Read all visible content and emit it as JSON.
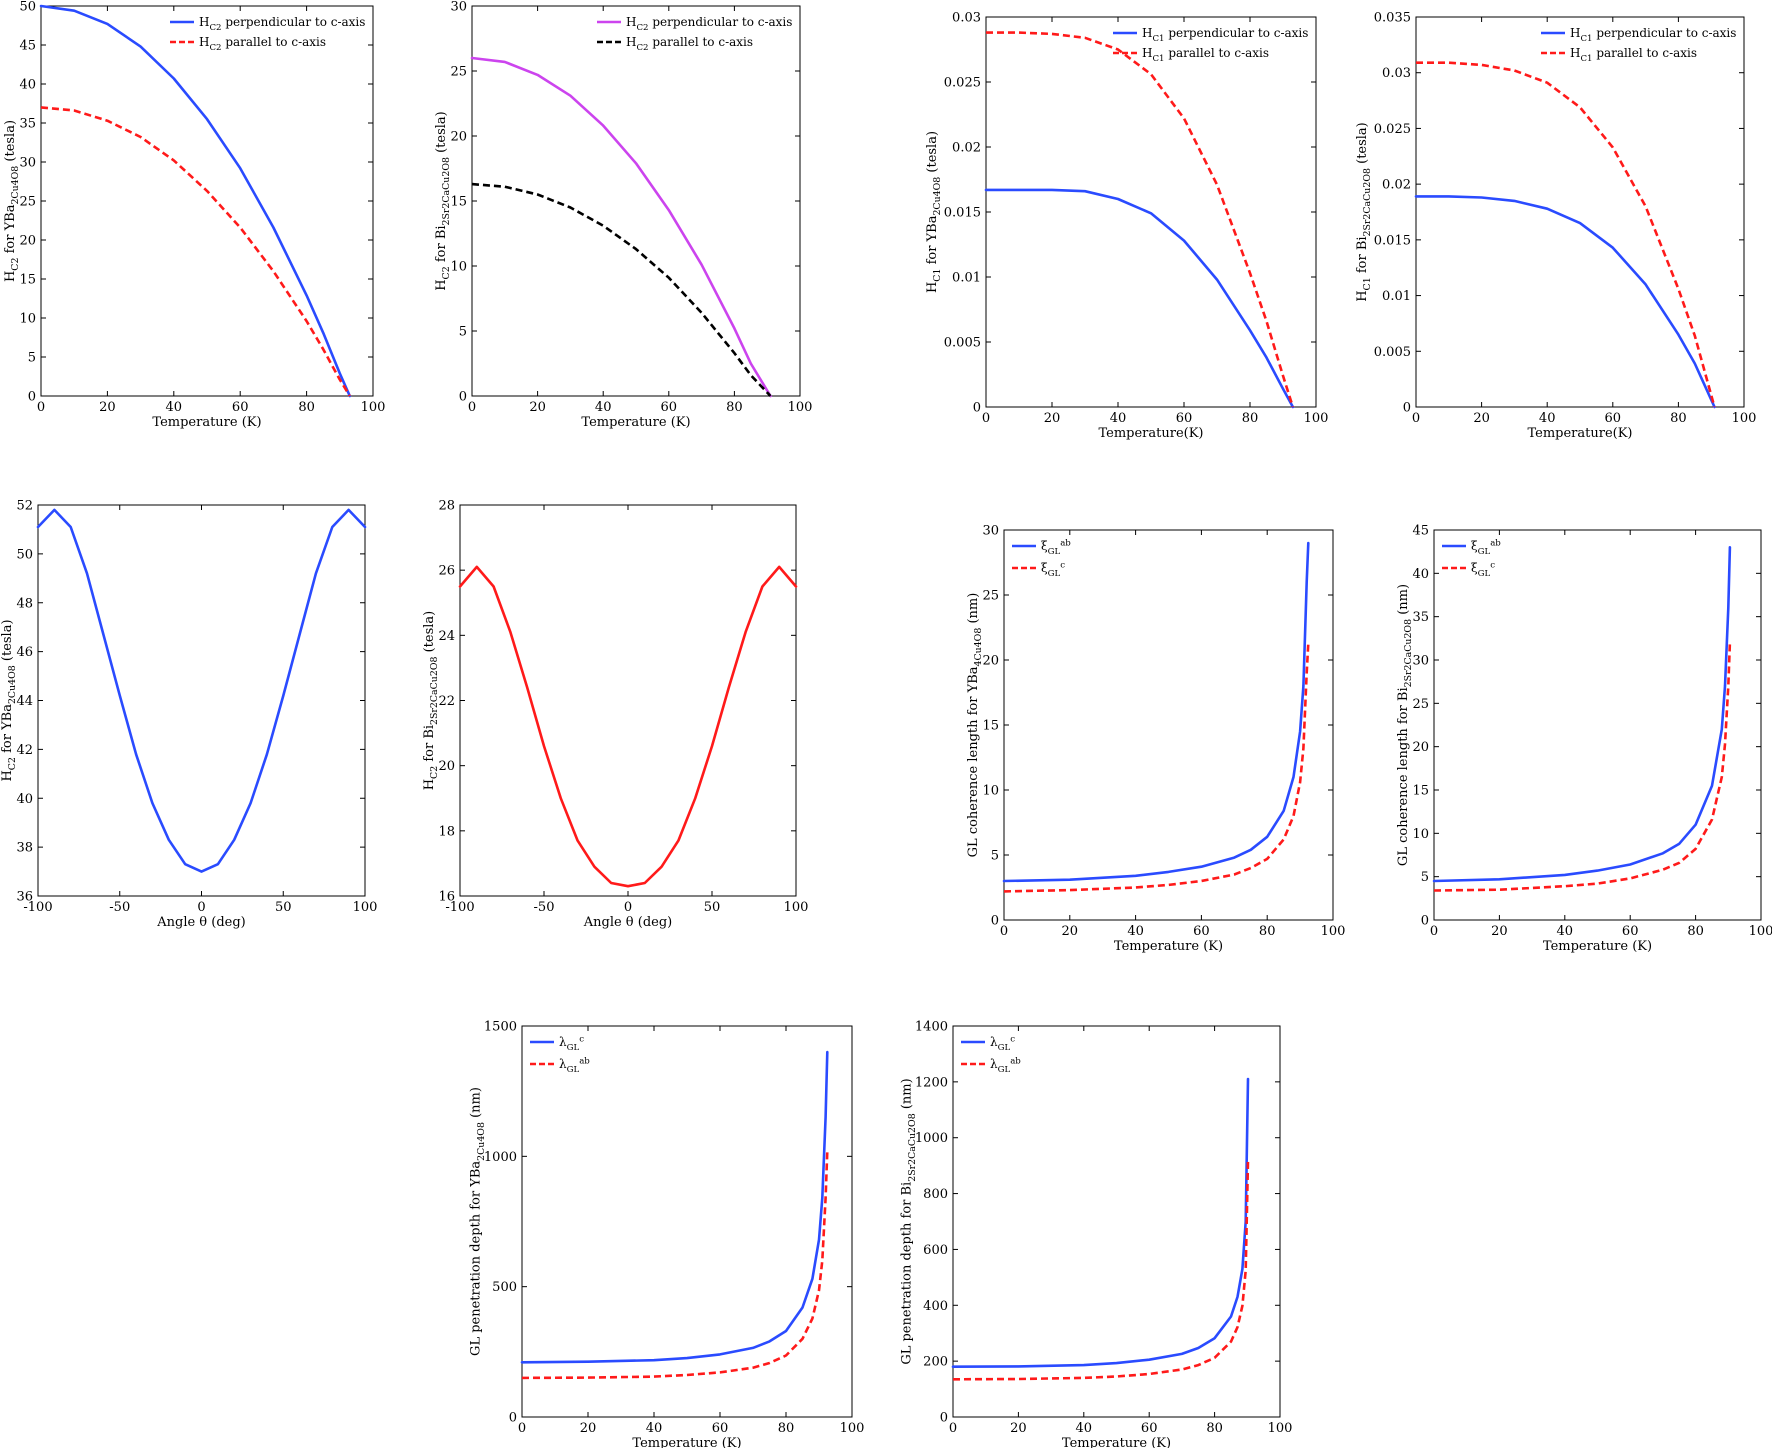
{
  "chart_data": [
    {
      "type": "line",
      "xlabel": "Temperature (K)",
      "ylabel": "H_C2 for YBa_2Cu_4O_8 (tesla)",
      "xlim": [
        0,
        100
      ],
      "ylim": [
        0,
        50
      ],
      "xticks": [
        0,
        20,
        40,
        60,
        80,
        100
      ],
      "yticks": [
        0,
        5,
        10,
        15,
        20,
        25,
        30,
        35,
        40,
        45,
        50
      ],
      "legend": "top-right",
      "series": [
        {
          "name": "H_C2 perpendicular to c-axis",
          "color": "#2a4bff",
          "dash": "solid",
          "x": [
            0,
            10,
            20,
            30,
            40,
            50,
            60,
            70,
            80,
            85,
            90,
            93
          ],
          "y": [
            50,
            49.4,
            47.7,
            44.8,
            40.7,
            35.5,
            29.2,
            21.6,
            12.9,
            8.1,
            2.9,
            0
          ]
        },
        {
          "name": "H_C2 parallel to c-axis",
          "color": "#ff1a1a",
          "dash": "dashed",
          "x": [
            0,
            10,
            20,
            30,
            40,
            50,
            60,
            70,
            80,
            85,
            90,
            93
          ],
          "y": [
            37,
            36.6,
            35.3,
            33.2,
            30.2,
            26.3,
            21.6,
            16,
            9.6,
            6,
            2.1,
            0
          ]
        }
      ]
    },
    {
      "type": "line",
      "xlabel": "Temperature (K)",
      "ylabel": "H_C2 for Bi_2Sr_2CaCu_2O_8 (tesla)",
      "xlim": [
        0,
        100
      ],
      "ylim": [
        0,
        30
      ],
      "xticks": [
        0,
        20,
        40,
        60,
        80,
        100
      ],
      "yticks": [
        0,
        5,
        10,
        15,
        20,
        25,
        30
      ],
      "legend": "top-right",
      "series": [
        {
          "name": "H_C2 perpendicular to c-axis",
          "color": "#cc44ee",
          "dash": "solid",
          "x": [
            0,
            10,
            20,
            30,
            40,
            50,
            60,
            70,
            80,
            85,
            91
          ],
          "y": [
            26,
            25.7,
            24.7,
            23.1,
            20.8,
            17.9,
            14.3,
            10.1,
            5.2,
            2.5,
            0
          ]
        },
        {
          "name": "H_C2 parallel to c-axis",
          "color": "#000000",
          "dash": "dashed",
          "x": [
            0,
            10,
            20,
            30,
            40,
            50,
            60,
            70,
            80,
            85,
            91
          ],
          "y": [
            16.3,
            16.1,
            15.5,
            14.5,
            13.1,
            11.3,
            9.1,
            6.4,
            3.3,
            1.6,
            0
          ]
        }
      ]
    },
    {
      "type": "line",
      "xlabel": "Temperature(K)",
      "ylabel": "H_C1 for YBa_2Cu_4O_8 (tesla)",
      "xlim": [
        0,
        100
      ],
      "ylim": [
        0,
        0.03
      ],
      "xticks": [
        0,
        20,
        40,
        60,
        80,
        100
      ],
      "yticks": [
        0,
        0.005,
        0.01,
        0.015,
        0.02,
        0.025,
        0.03
      ],
      "legend": "top-right",
      "series": [
        {
          "name": "H_C1 perpendicular to c-axis",
          "color": "#2a4bff",
          "dash": "solid",
          "x": [
            0,
            10,
            20,
            30,
            40,
            50,
            60,
            70,
            80,
            85,
            90,
            93
          ],
          "y": [
            0.0167,
            0.0167,
            0.0167,
            0.0166,
            0.016,
            0.0149,
            0.0128,
            0.0098,
            0.0059,
            0.0038,
            0.0014,
            0
          ]
        },
        {
          "name": "H_C1 parallel to c-axis",
          "color": "#ff1a1a",
          "dash": "dashed",
          "x": [
            0,
            10,
            20,
            30,
            40,
            50,
            60,
            70,
            80,
            85,
            90,
            93
          ],
          "y": [
            0.0288,
            0.0288,
            0.0287,
            0.0284,
            0.0275,
            0.0256,
            0.0222,
            0.0171,
            0.0103,
            0.0066,
            0.0024,
            0
          ]
        }
      ]
    },
    {
      "type": "line",
      "xlabel": "Temperature(K)",
      "ylabel": "H_C1 for Bi_2Sr_2CaCu_2O_8 (tesla)",
      "xlim": [
        0,
        100
      ],
      "ylim": [
        0,
        0.035
      ],
      "xticks": [
        0,
        20,
        40,
        60,
        80,
        100
      ],
      "yticks": [
        0,
        0.005,
        0.01,
        0.015,
        0.02,
        0.025,
        0.03,
        0.035
      ],
      "legend": "top-right",
      "series": [
        {
          "name": "H_C1 perpendicular to c-axis",
          "color": "#2a4bff",
          "dash": "solid",
          "x": [
            0,
            10,
            20,
            30,
            40,
            50,
            60,
            70,
            80,
            85,
            91
          ],
          "y": [
            0.0189,
            0.0189,
            0.0188,
            0.0185,
            0.0178,
            0.0165,
            0.0143,
            0.011,
            0.0065,
            0.0039,
            0
          ]
        },
        {
          "name": "H_C1 parallel to c-axis",
          "color": "#ff1a1a",
          "dash": "dashed",
          "x": [
            0,
            10,
            20,
            30,
            40,
            50,
            60,
            70,
            80,
            85,
            91
          ],
          "y": [
            0.0309,
            0.0309,
            0.0307,
            0.0302,
            0.0291,
            0.0269,
            0.0233,
            0.018,
            0.0106,
            0.0064,
            0
          ]
        }
      ]
    },
    {
      "type": "line",
      "xlabel": "Angle θ (deg)",
      "ylabel": "H_C2 for YBa_2Cu_4O_8 (tesla)",
      "xlim": [
        -100,
        100
      ],
      "ylim": [
        36,
        52
      ],
      "xticks": [
        -100,
        -50,
        0,
        50,
        100
      ],
      "yticks": [
        36,
        38,
        40,
        42,
        44,
        46,
        48,
        50,
        52
      ],
      "series": [
        {
          "color": "#2a4bff",
          "dash": "solid",
          "x": [
            -100,
            -90,
            -80,
            -70,
            -60,
            -50,
            -40,
            -30,
            -20,
            -10,
            0,
            10,
            20,
            30,
            40,
            50,
            60,
            70,
            80,
            90,
            100
          ],
          "y": [
            51.1,
            51.8,
            51.1,
            49.2,
            46.7,
            44.2,
            41.8,
            39.8,
            38.3,
            37.3,
            37,
            37.3,
            38.3,
            39.8,
            41.8,
            44.2,
            46.7,
            49.2,
            51.1,
            51.8,
            51.1
          ]
        }
      ]
    },
    {
      "type": "line",
      "xlabel": "Angle θ (deg)",
      "ylabel": "H_C2 for Bi_2Sr_2CaCu_2O_8 (tesla)",
      "xlim": [
        -100,
        100
      ],
      "ylim": [
        16,
        28
      ],
      "xticks": [
        -100,
        -50,
        0,
        50,
        100
      ],
      "yticks": [
        16,
        18,
        20,
        22,
        24,
        26,
        28
      ],
      "series": [
        {
          "color": "#ff1a1a",
          "dash": "solid",
          "x": [
            -100,
            -90,
            -80,
            -70,
            -60,
            -50,
            -40,
            -30,
            -20,
            -10,
            0,
            10,
            20,
            30,
            40,
            50,
            60,
            70,
            80,
            90,
            100
          ],
          "y": [
            25.5,
            26.1,
            25.5,
            24.1,
            22.4,
            20.6,
            19,
            17.7,
            16.9,
            16.4,
            16.3,
            16.4,
            16.9,
            17.7,
            19,
            20.6,
            22.4,
            24.1,
            25.5,
            26.1,
            25.5
          ]
        }
      ]
    },
    {
      "type": "line",
      "xlabel": "Temperature (K)",
      "ylabel": "GL coherence length for YBa_4Cu_4O_8 (nm)",
      "xlim": [
        0,
        100
      ],
      "ylim": [
        0,
        30
      ],
      "xticks": [
        0,
        20,
        40,
        60,
        80,
        100
      ],
      "yticks": [
        0,
        5,
        10,
        15,
        20,
        25,
        30
      ],
      "legend": "top-left",
      "series": [
        {
          "name": "ξ_GL^ab",
          "color": "#2a4bff",
          "dash": "solid",
          "x": [
            0,
            20,
            40,
            50,
            60,
            70,
            75,
            80,
            85,
            88,
            90,
            91,
            92,
            92.5
          ],
          "y": [
            3.0,
            3.1,
            3.4,
            3.7,
            4.1,
            4.8,
            5.4,
            6.4,
            8.4,
            11,
            14.5,
            18,
            26,
            29
          ]
        },
        {
          "name": "ξ_GL^c",
          "color": "#ff1a1a",
          "dash": "dashed",
          "x": [
            0,
            20,
            40,
            50,
            60,
            70,
            75,
            80,
            85,
            88,
            90,
            91,
            92,
            92.5
          ],
          "y": [
            2.2,
            2.3,
            2.5,
            2.7,
            3.0,
            3.5,
            4.0,
            4.7,
            6.2,
            8.0,
            10.6,
            13.2,
            19,
            21.3
          ]
        }
      ]
    },
    {
      "type": "line",
      "xlabel": "Temperature (K)",
      "ylabel": "GL coherence length for Bi_2Sr_2CaCu_2O_8 (nm)",
      "xlim": [
        0,
        100
      ],
      "ylim": [
        0,
        45
      ],
      "xticks": [
        0,
        20,
        40,
        60,
        80,
        100
      ],
      "yticks": [
        0,
        5,
        10,
        15,
        20,
        25,
        30,
        35,
        40,
        45
      ],
      "legend": "top-left",
      "series": [
        {
          "name": "ξ_GL^ab",
          "color": "#2a4bff",
          "dash": "solid",
          "x": [
            0,
            20,
            40,
            50,
            60,
            70,
            75,
            80,
            85,
            88,
            89,
            90,
            90.5
          ],
          "y": [
            4.5,
            4.7,
            5.2,
            5.7,
            6.4,
            7.7,
            8.8,
            11,
            15.5,
            22,
            27,
            36,
            43
          ]
        },
        {
          "name": "ξ_GL^c",
          "color": "#ff1a1a",
          "dash": "dashed",
          "x": [
            0,
            20,
            40,
            50,
            60,
            70,
            75,
            80,
            85,
            88,
            89,
            90,
            90.5
          ],
          "y": [
            3.4,
            3.5,
            3.9,
            4.2,
            4.8,
            5.8,
            6.6,
            8.2,
            11.6,
            16.5,
            20.3,
            27,
            32
          ]
        }
      ]
    },
    {
      "type": "line",
      "xlabel": "Temperature (K)",
      "ylabel": "GL penetration depth for YBa_2Cu_4O_8 (nm)",
      "xlim": [
        0,
        100
      ],
      "ylim": [
        0,
        1500
      ],
      "xticks": [
        0,
        20,
        40,
        60,
        80,
        100
      ],
      "yticks": [
        0,
        500,
        1000,
        1500
      ],
      "legend": "top-left",
      "series": [
        {
          "name": "λ_GL^c",
          "color": "#2a4bff",
          "dash": "solid",
          "x": [
            0,
            20,
            40,
            50,
            60,
            70,
            75,
            80,
            85,
            88,
            90,
            91,
            92,
            92.5
          ],
          "y": [
            210,
            212,
            218,
            226,
            240,
            265,
            290,
            330,
            420,
            530,
            680,
            840,
            1150,
            1400
          ]
        },
        {
          "name": "λ_GL^ab",
          "color": "#ff1a1a",
          "dash": "dashed",
          "x": [
            0,
            20,
            40,
            50,
            60,
            70,
            75,
            80,
            85,
            88,
            90,
            91,
            92,
            92.5
          ],
          "y": [
            150,
            151,
            155,
            161,
            171,
            189,
            207,
            236,
            300,
            378,
            486,
            600,
            840,
            1020
          ]
        }
      ]
    },
    {
      "type": "line",
      "xlabel": "Temperature (K)",
      "ylabel": "GL penetration depth for Bi_2Sr_2CaCu_2O_8 (nm)",
      "xlim": [
        0,
        100
      ],
      "ylim": [
        0,
        1400
      ],
      "xticks": [
        0,
        20,
        40,
        60,
        80,
        100
      ],
      "yticks": [
        0,
        200,
        400,
        600,
        800,
        1000,
        1200,
        1400
      ],
      "legend": "top-left",
      "series": [
        {
          "name": "λ_GL^c",
          "color": "#2a4bff",
          "dash": "solid",
          "x": [
            0,
            20,
            40,
            50,
            60,
            70,
            75,
            80,
            85,
            87,
            88.5,
            89.5,
            90.2
          ],
          "y": [
            180,
            181,
            186,
            193,
            205,
            226,
            247,
            282,
            360,
            430,
            530,
            700,
            1210
          ]
        },
        {
          "name": "λ_GL^ab",
          "color": "#ff1a1a",
          "dash": "dashed",
          "x": [
            0,
            20,
            40,
            50,
            60,
            70,
            75,
            80,
            85,
            87,
            88.5,
            89.5,
            90.2
          ],
          "y": [
            135,
            136,
            140,
            145,
            154,
            170,
            186,
            212,
            270,
            322,
            398,
            525,
            920
          ]
        }
      ]
    }
  ]
}
